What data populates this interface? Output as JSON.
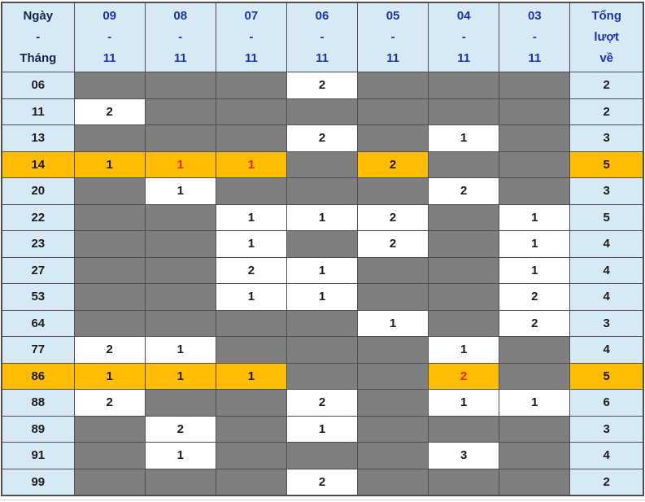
{
  "colors": {
    "header_bg": "#d6e9f5",
    "empty_cell_gray": "#7f7f7f",
    "highlight_orange": "#ffbc00",
    "red_value": "#f42613",
    "header_blue": "#1733b2",
    "corner_navy": "#13264d",
    "border_gray": "#4e4e4e"
  },
  "table": {
    "corner_header": {
      "line1": "Ngày",
      "line2": "-",
      "line3": "Tháng"
    },
    "total_header": {
      "line1": "Tổng",
      "line2": "lượt",
      "line3": "về"
    },
    "date_columns": [
      {
        "day": "09",
        "sep": "-",
        "month": "11"
      },
      {
        "day": "08",
        "sep": "-",
        "month": "11"
      },
      {
        "day": "07",
        "sep": "-",
        "month": "11"
      },
      {
        "day": "06",
        "sep": "-",
        "month": "11"
      },
      {
        "day": "05",
        "sep": "-",
        "month": "11"
      },
      {
        "day": "04",
        "sep": "-",
        "month": "11"
      },
      {
        "day": "03",
        "sep": "-",
        "month": "11"
      }
    ],
    "rows": [
      {
        "label": "06",
        "cells": [
          "",
          "",
          "",
          "2",
          "",
          "",
          ""
        ],
        "total": "2",
        "highlight": false,
        "red": []
      },
      {
        "label": "11",
        "cells": [
          "2",
          "",
          "",
          "",
          "",
          "",
          ""
        ],
        "total": "2",
        "highlight": false,
        "red": []
      },
      {
        "label": "13",
        "cells": [
          "",
          "",
          "",
          "2",
          "",
          "1",
          ""
        ],
        "total": "3",
        "highlight": false,
        "red": []
      },
      {
        "label": "14",
        "cells": [
          "1",
          "1",
          "1",
          "",
          "2",
          "",
          ""
        ],
        "total": "5",
        "highlight": true,
        "red": [
          1,
          2
        ]
      },
      {
        "label": "20",
        "cells": [
          "",
          "1",
          "",
          "",
          "",
          "2",
          ""
        ],
        "total": "3",
        "highlight": false,
        "red": []
      },
      {
        "label": "22",
        "cells": [
          "",
          "",
          "1",
          "1",
          "2",
          "",
          "1"
        ],
        "total": "5",
        "highlight": false,
        "red": []
      },
      {
        "label": "23",
        "cells": [
          "",
          "",
          "1",
          "",
          "2",
          "",
          "1"
        ],
        "total": "4",
        "highlight": false,
        "red": []
      },
      {
        "label": "27",
        "cells": [
          "",
          "",
          "2",
          "1",
          "",
          "",
          "1"
        ],
        "total": "4",
        "highlight": false,
        "red": []
      },
      {
        "label": "53",
        "cells": [
          "",
          "",
          "1",
          "1",
          "",
          "",
          "2"
        ],
        "total": "4",
        "highlight": false,
        "red": []
      },
      {
        "label": "64",
        "cells": [
          "",
          "",
          "",
          "",
          "1",
          "",
          "2"
        ],
        "total": "3",
        "highlight": false,
        "red": []
      },
      {
        "label": "77",
        "cells": [
          "2",
          "1",
          "",
          "",
          "",
          "1",
          ""
        ],
        "total": "4",
        "highlight": false,
        "red": []
      },
      {
        "label": "86",
        "cells": [
          "1",
          "1",
          "1",
          "",
          "",
          "2",
          ""
        ],
        "total": "5",
        "highlight": true,
        "red": [
          5
        ]
      },
      {
        "label": "88",
        "cells": [
          "2",
          "",
          "",
          "2",
          "",
          "1",
          "1"
        ],
        "total": "6",
        "highlight": false,
        "red": []
      },
      {
        "label": "89",
        "cells": [
          "",
          "2",
          "",
          "1",
          "",
          "",
          ""
        ],
        "total": "3",
        "highlight": false,
        "red": []
      },
      {
        "label": "91",
        "cells": [
          "",
          "1",
          "",
          "",
          "",
          "3",
          ""
        ],
        "total": "4",
        "highlight": false,
        "red": []
      },
      {
        "label": "99",
        "cells": [
          "",
          "",
          "",
          "2",
          "",
          "",
          ""
        ],
        "total": "2",
        "highlight": false,
        "red": []
      }
    ]
  },
  "chart_data": {
    "type": "table",
    "title": "Lottery number frequency by date",
    "columns": [
      "Ngày - Tháng",
      "09-11",
      "08-11",
      "07-11",
      "06-11",
      "05-11",
      "04-11",
      "03-11",
      "Tổng lượt về"
    ],
    "rows": [
      [
        "06",
        null,
        null,
        null,
        2,
        null,
        null,
        null,
        2
      ],
      [
        "11",
        2,
        null,
        null,
        null,
        null,
        null,
        null,
        2
      ],
      [
        "13",
        null,
        null,
        null,
        2,
        null,
        1,
        null,
        3
      ],
      [
        "14",
        1,
        1,
        1,
        null,
        2,
        null,
        null,
        5
      ],
      [
        "20",
        null,
        1,
        null,
        null,
        null,
        2,
        null,
        3
      ],
      [
        "22",
        null,
        null,
        1,
        1,
        2,
        null,
        1,
        5
      ],
      [
        "23",
        null,
        null,
        1,
        null,
        2,
        null,
        1,
        4
      ],
      [
        "27",
        null,
        null,
        2,
        1,
        null,
        null,
        1,
        4
      ],
      [
        "53",
        null,
        null,
        1,
        1,
        null,
        null,
        2,
        4
      ],
      [
        "64",
        null,
        null,
        null,
        null,
        1,
        null,
        2,
        3
      ],
      [
        "77",
        2,
        1,
        null,
        null,
        null,
        1,
        null,
        4
      ],
      [
        "86",
        1,
        1,
        1,
        null,
        null,
        2,
        null,
        5
      ],
      [
        "88",
        2,
        null,
        null,
        2,
        null,
        1,
        1,
        6
      ],
      [
        "89",
        null,
        2,
        null,
        1,
        null,
        null,
        null,
        3
      ],
      [
        "91",
        null,
        1,
        null,
        null,
        null,
        3,
        null,
        4
      ],
      [
        "99",
        null,
        null,
        null,
        2,
        null,
        null,
        null,
        2
      ]
    ],
    "highlighted_rows": [
      "14",
      "86"
    ],
    "red_cells": [
      {
        "row": "14",
        "column": "08-11",
        "value": 1
      },
      {
        "row": "14",
        "column": "07-11",
        "value": 1
      },
      {
        "row": "86",
        "column": "04-11",
        "value": 2
      }
    ]
  }
}
